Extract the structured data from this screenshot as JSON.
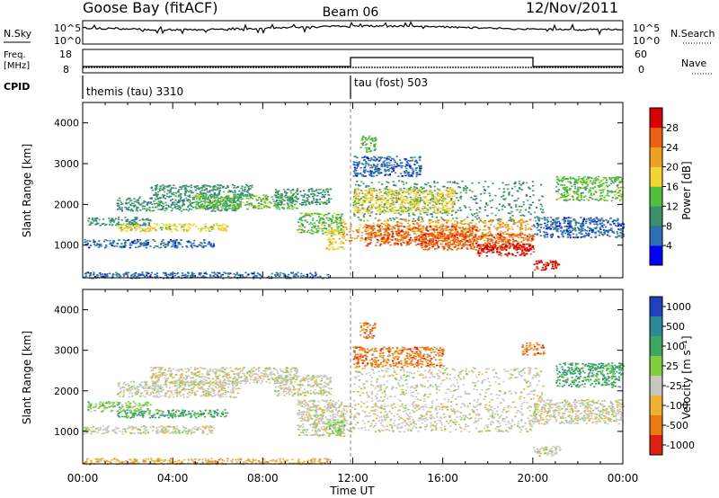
{
  "header": {
    "station": "Goose Bay (fitACF)",
    "beam": "Beam 06",
    "date": "12/Nov/2011"
  },
  "noise_panel": {
    "left_label": "N.Sky",
    "left_ticks": [
      "10^5",
      "10^0"
    ],
    "right_ticks": [
      "10^5",
      "10^0"
    ],
    "right_label": "N.Search"
  },
  "freq_panel": {
    "left_label_line1": "Freq.",
    "left_label_line2": "[MHz]",
    "left_ticks": [
      "18",
      "8"
    ],
    "right_ticks": [
      "60",
      "0"
    ],
    "right_label": "Nave"
  },
  "cpid_panel": {
    "label": "CPID",
    "modes": [
      {
        "name": "themis (tau) 3310",
        "start_hour": 0
      },
      {
        "name": "tau (fost) 503",
        "start_hour": 12
      }
    ]
  },
  "colors": {
    "power": [
      "#0000ff",
      "#2a6fb8",
      "#3b8f6a",
      "#4fbf3c",
      "#f2d531",
      "#f0a020",
      "#ee6010",
      "#dd0000"
    ],
    "velocity": [
      "#2040c0",
      "#2a8a9a",
      "#3aa860",
      "#7fd03a",
      "#c8c8c0",
      "#f0b030",
      "#ee7a10",
      "#e02010"
    ],
    "trace": "#000000"
  },
  "chart_data": [
    {
      "type": "heatmap",
      "title": "",
      "quantity": "Power",
      "ylabel": "Slant Range [km]",
      "xlabel": "",
      "xlim": [
        0,
        24
      ],
      "ylim": [
        200,
        4500
      ],
      "yticks": [
        1000,
        2000,
        3000,
        4000
      ],
      "xtick_labels": [],
      "colorbar": {
        "label": "Power [dB]",
        "ticks": [
          "4",
          "8",
          "12",
          "16",
          "20",
          "24",
          "28"
        ],
        "range": [
          0,
          32
        ]
      },
      "regions": [
        {
          "t0": 0.0,
          "t1": 5.8,
          "r0": 950,
          "r1": 1150,
          "level": 1
        },
        {
          "t0": 1.5,
          "t1": 6.5,
          "r0": 1350,
          "r1": 1550,
          "level": 4
        },
        {
          "t0": 0.2,
          "t1": 3.0,
          "r0": 1500,
          "r1": 1700,
          "level": 2
        },
        {
          "t0": 1.5,
          "t1": 7.0,
          "r0": 1850,
          "r1": 2200,
          "level": 2
        },
        {
          "t0": 3.0,
          "t1": 7.5,
          "r0": 2200,
          "r1": 2500,
          "level": 2
        },
        {
          "t0": 5.0,
          "t1": 9.5,
          "r0": 1900,
          "r1": 2250,
          "level": 3
        },
        {
          "t0": 8.5,
          "t1": 11.0,
          "r0": 2000,
          "r1": 2400,
          "level": 2
        },
        {
          "t0": 9.5,
          "t1": 11.5,
          "r0": 1300,
          "r1": 1800,
          "level": 3
        },
        {
          "t0": 10.8,
          "t1": 11.6,
          "r0": 900,
          "r1": 1400,
          "level": 4
        },
        {
          "t0": 12.0,
          "t1": 20.5,
          "r0": 1600,
          "r1": 2600,
          "level": 2
        },
        {
          "t0": 12.0,
          "t1": 16.5,
          "r0": 1800,
          "r1": 2400,
          "level": 4
        },
        {
          "t0": 11.5,
          "t1": 20.0,
          "r0": 1100,
          "r1": 1650,
          "level": 5
        },
        {
          "t0": 12.5,
          "t1": 17.5,
          "r0": 1000,
          "r1": 1500,
          "level": 6
        },
        {
          "t0": 15.0,
          "t1": 20.0,
          "r0": 900,
          "r1": 1300,
          "level": 6
        },
        {
          "t0": 17.5,
          "t1": 20.0,
          "r0": 750,
          "r1": 1050,
          "level": 7
        },
        {
          "t0": 20.0,
          "t1": 21.2,
          "r0": 400,
          "r1": 650,
          "level": 7
        },
        {
          "t0": 20.0,
          "t1": 24.0,
          "r0": 1200,
          "r1": 1700,
          "level": 1
        },
        {
          "t0": 21.0,
          "t1": 24.0,
          "r0": 2100,
          "r1": 2700,
          "level": 3
        },
        {
          "t0": 0.0,
          "t1": 11.0,
          "r0": 200,
          "r1": 350,
          "level": 1
        },
        {
          "t0": 12.0,
          "t1": 15.0,
          "r0": 2700,
          "r1": 3200,
          "level": 1
        },
        {
          "t0": 12.3,
          "t1": 13.0,
          "r0": 3300,
          "r1": 3700,
          "level": 3
        }
      ]
    },
    {
      "type": "heatmap",
      "title": "",
      "quantity": "Velocity",
      "ylabel": "Slant Range [km]",
      "xlabel": "Time UT",
      "xlim": [
        0,
        24
      ],
      "ylim": [
        200,
        4500
      ],
      "yticks": [
        1000,
        2000,
        3000,
        4000
      ],
      "xtick_labels": [
        "00:00",
        "04:00",
        "08:00",
        "12:00",
        "16:00",
        "20:00",
        "00:00"
      ],
      "colorbar": {
        "label": "Velocity [m s⁻¹]",
        "ticks": [
          "1000",
          "500",
          "100",
          "25",
          "-25",
          "-100",
          "-500",
          "-1000"
        ],
        "range": [
          -1000,
          1000
        ]
      },
      "regions": [
        {
          "t0": 0.0,
          "t1": 5.8,
          "r0": 950,
          "r1": 1150,
          "level": 4
        },
        {
          "t0": 1.5,
          "t1": 6.5,
          "r0": 1350,
          "r1": 1550,
          "level": 2
        },
        {
          "t0": 0.2,
          "t1": 3.0,
          "r0": 1500,
          "r1": 1750,
          "level": 3
        },
        {
          "t0": 1.5,
          "t1": 7.0,
          "r0": 1850,
          "r1": 2250,
          "level": 4
        },
        {
          "t0": 3.0,
          "t1": 9.5,
          "r0": 2200,
          "r1": 2600,
          "level": 4
        },
        {
          "t0": 8.5,
          "t1": 11.0,
          "r0": 1900,
          "r1": 2400,
          "level": 4
        },
        {
          "t0": 9.5,
          "t1": 11.6,
          "r0": 900,
          "r1": 1800,
          "level": 4
        },
        {
          "t0": 10.8,
          "t1": 11.6,
          "r0": 900,
          "r1": 1300,
          "level": 3
        },
        {
          "t0": 12.0,
          "t1": 20.5,
          "r0": 1600,
          "r1": 2600,
          "level": 4
        },
        {
          "t0": 11.5,
          "t1": 20.0,
          "r0": 1000,
          "r1": 1650,
          "level": 4
        },
        {
          "t0": 20.0,
          "t1": 24.0,
          "r0": 1200,
          "r1": 1800,
          "level": 4
        },
        {
          "t0": 20.0,
          "t1": 21.2,
          "r0": 400,
          "r1": 650,
          "level": 4
        },
        {
          "t0": 12.3,
          "t1": 13.0,
          "r0": 3300,
          "r1": 3700,
          "level": 6
        },
        {
          "t0": 19.5,
          "t1": 20.5,
          "r0": 2900,
          "r1": 3200,
          "level": 6
        },
        {
          "t0": 21.0,
          "t1": 24.0,
          "r0": 2100,
          "r1": 2700,
          "level": 2
        },
        {
          "t0": 0.0,
          "t1": 11.0,
          "r0": 200,
          "r1": 350,
          "level": 5
        },
        {
          "t0": 12.0,
          "t1": 16.0,
          "r0": 2600,
          "r1": 3100,
          "level": 6
        }
      ]
    }
  ]
}
